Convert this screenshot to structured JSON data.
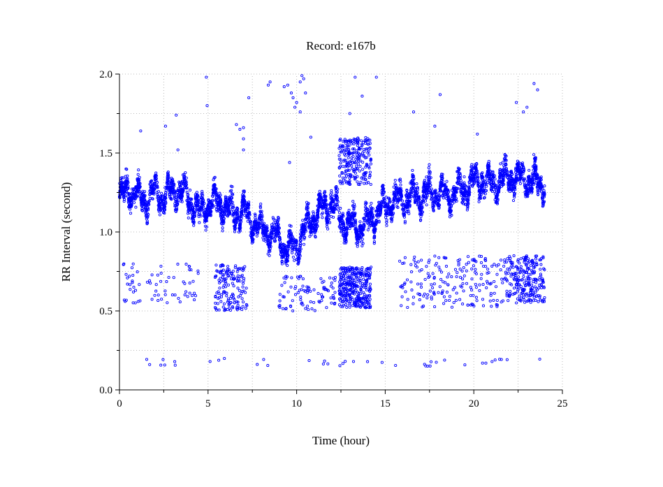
{
  "chart_data": {
    "type": "scatter",
    "title": "Record:  e167b",
    "xlabel": "Time (hour)",
    "ylabel": "RR Interval (second)",
    "xlim": [
      0,
      25
    ],
    "ylim": [
      0,
      2
    ],
    "xticks": [
      0,
      5,
      10,
      15,
      20,
      25
    ],
    "xtick_labels": [
      "0",
      "5",
      "10",
      "15",
      "20",
      "25"
    ],
    "yticks": [
      0,
      0.5,
      1,
      1.5,
      2
    ],
    "ytick_labels": [
      "0.0",
      "0.5",
      "1.0",
      "1.5",
      "2.0"
    ],
    "grid": true,
    "marker": "hollow circle",
    "color": "#0000ff",
    "series": [
      {
        "trend": {
          "x": [
            0,
            0.5,
            1,
            1.5,
            2,
            2.5,
            3,
            3.5,
            4,
            4.5,
            5,
            5.5,
            6,
            6.5,
            7,
            7.5,
            8,
            8.5,
            9,
            9.5,
            10,
            10.5,
            11,
            11.5,
            12,
            12.5,
            13,
            13.5,
            14,
            14.5,
            15,
            15.5,
            16,
            16.5,
            17,
            17.5,
            18,
            18.5,
            19,
            19.5,
            20,
            20.5,
            21,
            21.5,
            22,
            22.5,
            23,
            23.5,
            24
          ],
          "y": [
            1.22,
            1.28,
            1.22,
            1.2,
            1.25,
            1.22,
            1.27,
            1.26,
            1.2,
            1.12,
            1.17,
            1.2,
            1.15,
            1.12,
            1.13,
            1.07,
            1.02,
            1.0,
            0.96,
            0.88,
            0.92,
            1.02,
            1.1,
            1.14,
            1.18,
            1.08,
            1.05,
            1.03,
            1.06,
            1.12,
            1.17,
            1.2,
            1.2,
            1.22,
            1.23,
            1.25,
            1.25,
            1.23,
            1.26,
            1.27,
            1.32,
            1.33,
            1.3,
            1.33,
            1.35,
            1.35,
            1.33,
            1.32,
            1.3
          ]
        },
        "outliers": [
          [
            4.9,
            1.98
          ],
          [
            4.95,
            1.8
          ],
          [
            2.6,
            1.67
          ],
          [
            3.2,
            1.74
          ],
          [
            1.2,
            1.64
          ],
          [
            3.3,
            1.52
          ],
          [
            6.6,
            1.68
          ],
          [
            6.8,
            1.65
          ],
          [
            7.0,
            1.66
          ],
          [
            7.0,
            1.59
          ],
          [
            7.0,
            1.52
          ],
          [
            7.3,
            1.85
          ],
          [
            8.4,
            1.93
          ],
          [
            8.5,
            1.95
          ],
          [
            9.3,
            1.92
          ],
          [
            9.5,
            1.93
          ],
          [
            9.7,
            1.88
          ],
          [
            9.8,
            1.85
          ],
          [
            9.9,
            1.79
          ],
          [
            10.0,
            1.82
          ],
          [
            10.2,
            1.95
          ],
          [
            10.3,
            1.99
          ],
          [
            10.4,
            1.97
          ],
          [
            10.5,
            1.88
          ],
          [
            10.2,
            1.76
          ],
          [
            10.8,
            1.6
          ],
          [
            13.7,
            1.86
          ],
          [
            13.3,
            1.98
          ],
          [
            14.5,
            1.98
          ],
          [
            13.0,
            1.75
          ],
          [
            16.6,
            1.76
          ],
          [
            17.8,
            1.67
          ],
          [
            18.1,
            1.87
          ],
          [
            20.2,
            1.62
          ],
          [
            22.4,
            1.82
          ],
          [
            22.8,
            1.76
          ],
          [
            23.0,
            1.79
          ],
          [
            23.4,
            1.94
          ],
          [
            23.6,
            1.9
          ],
          [
            9.6,
            1.44
          ],
          [
            11.0,
            1.05
          ]
        ],
        "clusters": [
          {
            "x": [
              12.4,
              14.2
            ],
            "y": [
              1.3,
              1.6
            ],
            "n": 230
          },
          {
            "x": [
              12.4,
              14.2
            ],
            "y": [
              0.52,
              0.78
            ],
            "n": 320
          },
          {
            "x": [
              5.4,
              7.2
            ],
            "y": [
              0.5,
              0.8
            ],
            "n": 150
          },
          {
            "x": [
              21.8,
              24.0
            ],
            "y": [
              0.55,
              0.85
            ],
            "n": 240
          },
          {
            "x": [
              0.2,
              4.5
            ],
            "y": [
              0.55,
              0.8
            ],
            "n": 70
          },
          {
            "x": [
              9.0,
              12.2
            ],
            "y": [
              0.5,
              0.72
            ],
            "n": 90
          },
          {
            "x": [
              15.8,
              21.8
            ],
            "y": [
              0.52,
              0.85
            ],
            "n": 200
          },
          {
            "x": [
              1.4,
              24.0
            ],
            "y": [
              0.15,
              0.2
            ],
            "n": 40
          }
        ]
      }
    ]
  }
}
